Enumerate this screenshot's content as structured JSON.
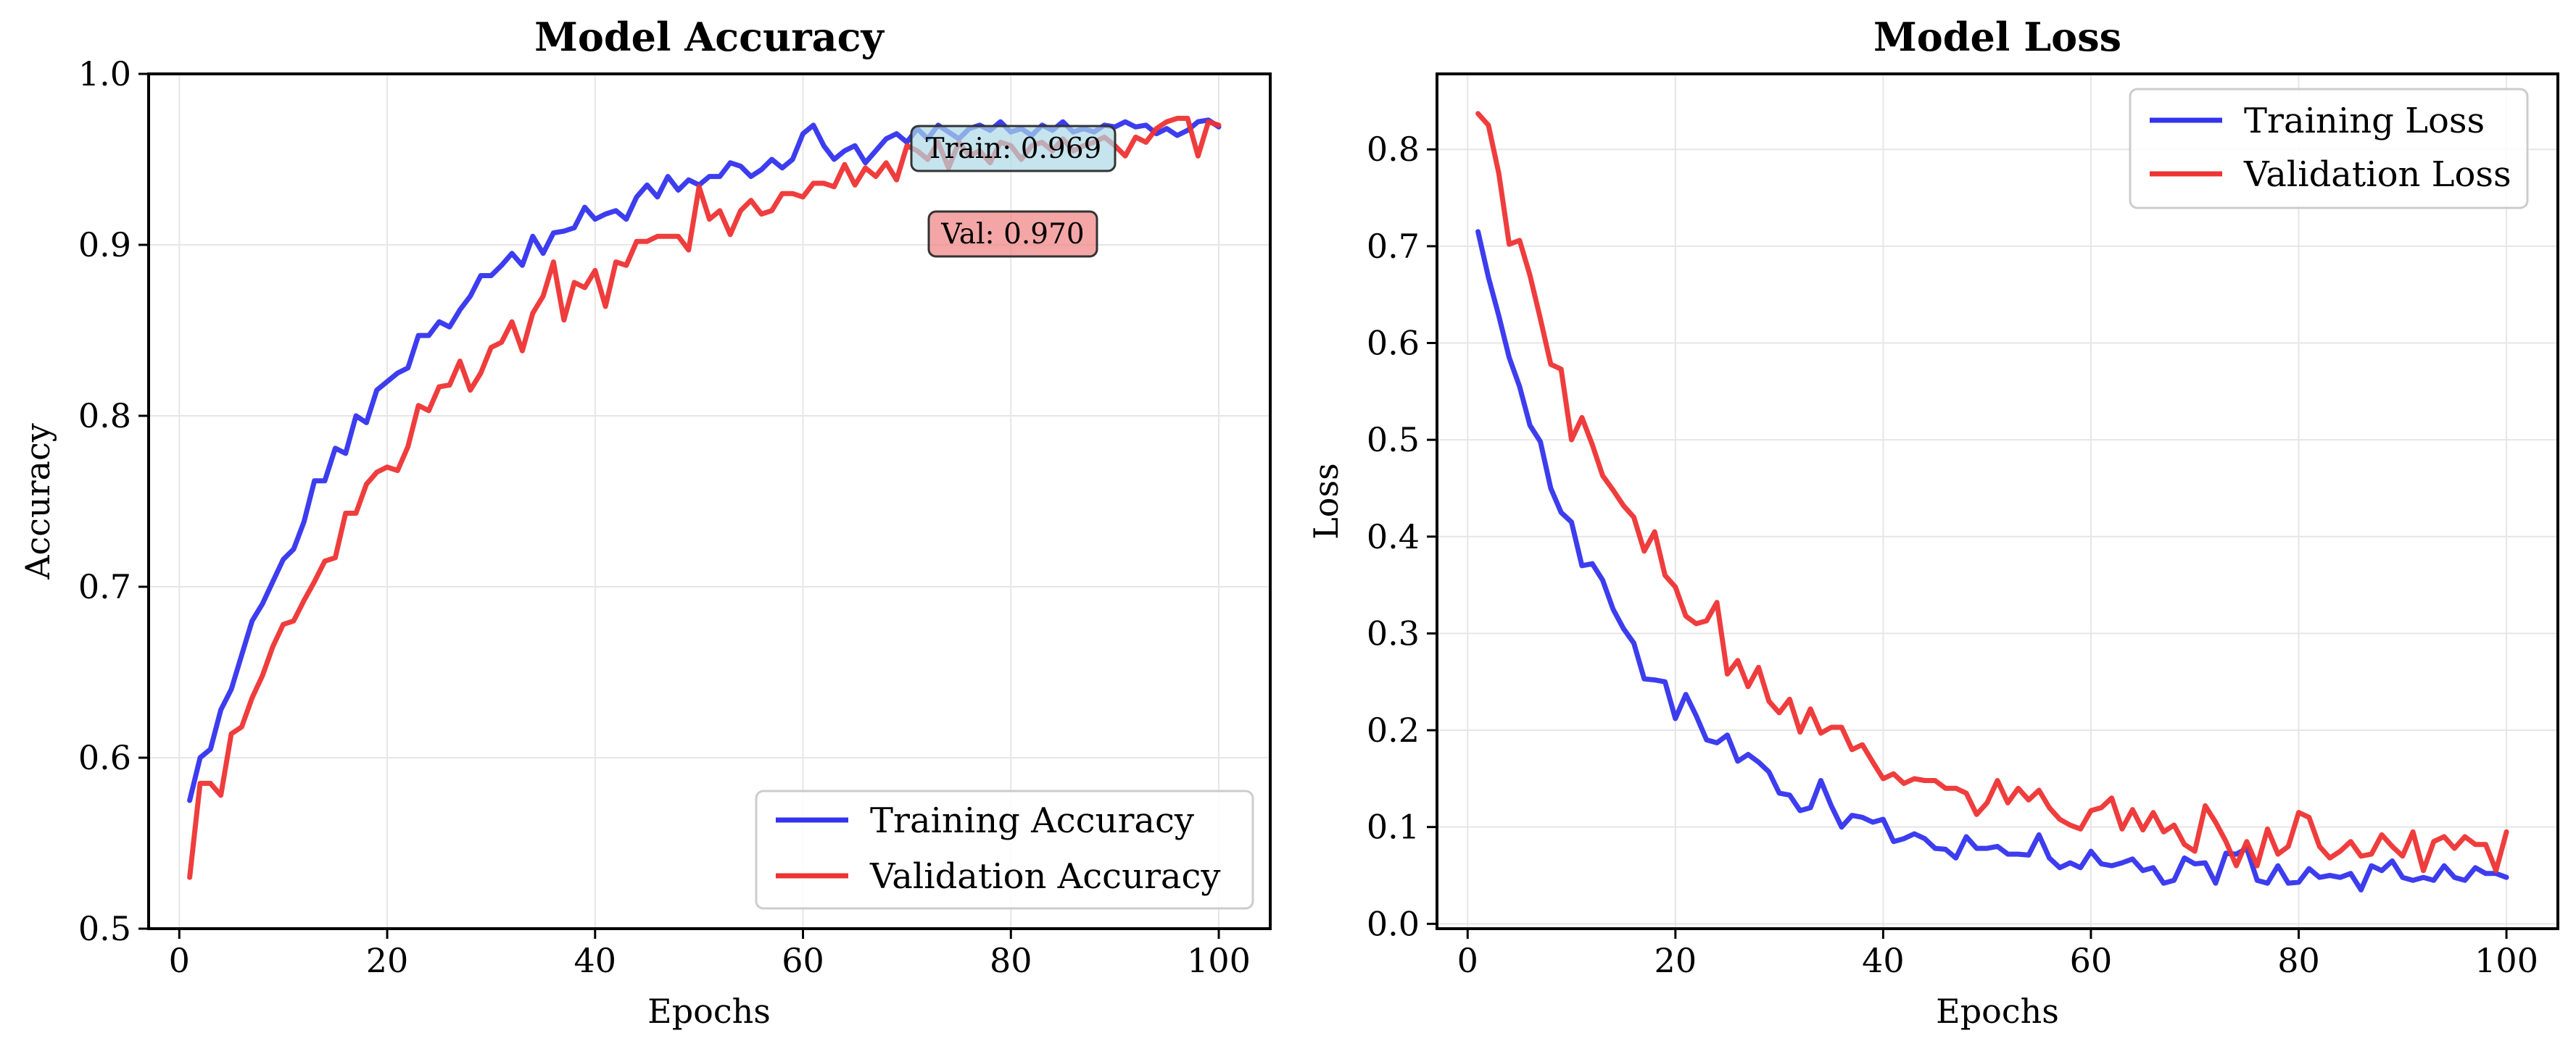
{
  "figure": {
    "background": "#ffffff"
  },
  "chart_data": [
    {
      "type": "line",
      "title": "Model Accuracy",
      "xlabel": "Epochs",
      "ylabel": "Accuracy",
      "xlim": [
        -2.95,
        104.95
      ],
      "ylim": [
        0.5,
        1.0
      ],
      "xticks": [
        0,
        20,
        40,
        60,
        80,
        100
      ],
      "yticks": [
        0.5,
        0.6,
        0.7,
        0.8,
        0.9,
        1.0
      ],
      "xtick_labels": [
        "0",
        "20",
        "40",
        "60",
        "80",
        "100"
      ],
      "ytick_labels": [
        "0.5",
        "0.6",
        "0.7",
        "0.8",
        "0.9",
        "1.0"
      ],
      "grid": true,
      "legend_position": "lower-right",
      "annotations": [
        {
          "text": "Train: 0.969",
          "color": "#add8e6"
        },
        {
          "text": "Val: 0.970",
          "color": "#f08080"
        }
      ],
      "series": [
        {
          "name": "Training Accuracy",
          "color": "#3333ee",
          "x": [
            1,
            2,
            3,
            4,
            5,
            6,
            7,
            8,
            9,
            10,
            11,
            12,
            13,
            14,
            15,
            16,
            17,
            18,
            19,
            20,
            21,
            22,
            23,
            24,
            25,
            26,
            27,
            28,
            29,
            30,
            31,
            32,
            33,
            34,
            35,
            36,
            37,
            38,
            39,
            40,
            41,
            42,
            43,
            44,
            45,
            46,
            47,
            48,
            49,
            50,
            51,
            52,
            53,
            54,
            55,
            56,
            57,
            58,
            59,
            60,
            61,
            62,
            63,
            64,
            65,
            66,
            67,
            68,
            69,
            70,
            71,
            72,
            73,
            74,
            75,
            76,
            77,
            78,
            79,
            80,
            81,
            82,
            83,
            84,
            85,
            86,
            87,
            88,
            89,
            90,
            91,
            92,
            93,
            94,
            95,
            96,
            97,
            98,
            99,
            100
          ],
          "values": [
            0.575,
            0.6,
            0.605,
            0.628,
            0.64,
            0.66,
            0.68,
            0.69,
            0.703,
            0.716,
            0.722,
            0.738,
            0.762,
            0.762,
            0.781,
            0.778,
            0.8,
            0.796,
            0.815,
            0.82,
            0.825,
            0.828,
            0.847,
            0.847,
            0.855,
            0.852,
            0.862,
            0.87,
            0.882,
            0.882,
            0.888,
            0.895,
            0.888,
            0.905,
            0.895,
            0.907,
            0.908,
            0.91,
            0.922,
            0.915,
            0.918,
            0.92,
            0.915,
            0.928,
            0.935,
            0.928,
            0.94,
            0.932,
            0.938,
            0.935,
            0.94,
            0.94,
            0.948,
            0.946,
            0.94,
            0.944,
            0.95,
            0.945,
            0.95,
            0.965,
            0.97,
            0.958,
            0.95,
            0.955,
            0.958,
            0.948,
            0.955,
            0.962,
            0.965,
            0.96,
            0.968,
            0.962,
            0.97,
            0.966,
            0.962,
            0.968,
            0.97,
            0.967,
            0.972,
            0.966,
            0.968,
            0.964,
            0.97,
            0.967,
            0.972,
            0.966,
            0.968,
            0.966,
            0.97,
            0.969,
            0.972,
            0.969,
            0.97,
            0.965,
            0.968,
            0.964,
            0.967,
            0.972,
            0.973,
            0.969
          ]
        },
        {
          "name": "Validation Accuracy",
          "color": "#ee3333",
          "x": [
            1,
            2,
            3,
            4,
            5,
            6,
            7,
            8,
            9,
            10,
            11,
            12,
            13,
            14,
            15,
            16,
            17,
            18,
            19,
            20,
            21,
            22,
            23,
            24,
            25,
            26,
            27,
            28,
            29,
            30,
            31,
            32,
            33,
            34,
            35,
            36,
            37,
            38,
            39,
            40,
            41,
            42,
            43,
            44,
            45,
            46,
            47,
            48,
            49,
            50,
            51,
            52,
            53,
            54,
            55,
            56,
            57,
            58,
            59,
            60,
            61,
            62,
            63,
            64,
            65,
            66,
            67,
            68,
            69,
            70,
            71,
            72,
            73,
            74,
            75,
            76,
            77,
            78,
            79,
            80,
            81,
            82,
            83,
            84,
            85,
            86,
            87,
            88,
            89,
            90,
            91,
            92,
            93,
            94,
            95,
            96,
            97,
            98,
            99,
            100
          ],
          "values": [
            0.53,
            0.585,
            0.585,
            0.578,
            0.614,
            0.618,
            0.635,
            0.648,
            0.665,
            0.678,
            0.68,
            0.692,
            0.703,
            0.715,
            0.717,
            0.743,
            0.743,
            0.76,
            0.767,
            0.77,
            0.768,
            0.782,
            0.806,
            0.803,
            0.817,
            0.818,
            0.832,
            0.815,
            0.825,
            0.84,
            0.843,
            0.855,
            0.838,
            0.86,
            0.87,
            0.89,
            0.856,
            0.878,
            0.875,
            0.885,
            0.864,
            0.89,
            0.888,
            0.902,
            0.902,
            0.905,
            0.905,
            0.905,
            0.897,
            0.934,
            0.915,
            0.92,
            0.906,
            0.92,
            0.926,
            0.918,
            0.92,
            0.93,
            0.93,
            0.928,
            0.936,
            0.936,
            0.934,
            0.947,
            0.935,
            0.945,
            0.94,
            0.948,
            0.938,
            0.958,
            0.955,
            0.95,
            0.96,
            0.945,
            0.96,
            0.952,
            0.955,
            0.948,
            0.96,
            0.958,
            0.95,
            0.958,
            0.96,
            0.955,
            0.962,
            0.955,
            0.958,
            0.96,
            0.963,
            0.958,
            0.952,
            0.963,
            0.96,
            0.968,
            0.972,
            0.974,
            0.974,
            0.952,
            0.972,
            0.97
          ]
        }
      ]
    },
    {
      "type": "line",
      "title": "Model Loss",
      "xlabel": "Epochs",
      "ylabel": "Loss",
      "xlim": [
        -2.95,
        104.95
      ],
      "ylim": [
        -0.005,
        0.878
      ],
      "xticks": [
        0,
        20,
        40,
        60,
        80,
        100
      ],
      "yticks": [
        0.0,
        0.1,
        0.2,
        0.3,
        0.4,
        0.5,
        0.6,
        0.7,
        0.8
      ],
      "xtick_labels": [
        "0",
        "20",
        "40",
        "60",
        "80",
        "100"
      ],
      "ytick_labels": [
        "0.0",
        "0.1",
        "0.2",
        "0.3",
        "0.4",
        "0.5",
        "0.6",
        "0.7",
        "0.8"
      ],
      "grid": true,
      "legend_position": "upper-right",
      "series": [
        {
          "name": "Training Loss",
          "color": "#3333ee",
          "x": [
            1,
            2,
            3,
            4,
            5,
            6,
            7,
            8,
            9,
            10,
            11,
            12,
            13,
            14,
            15,
            16,
            17,
            18,
            19,
            20,
            21,
            22,
            23,
            24,
            25,
            26,
            27,
            28,
            29,
            30,
            31,
            32,
            33,
            34,
            35,
            36,
            37,
            38,
            39,
            40,
            41,
            42,
            43,
            44,
            45,
            46,
            47,
            48,
            49,
            50,
            51,
            52,
            53,
            54,
            55,
            56,
            57,
            58,
            59,
            60,
            61,
            62,
            63,
            64,
            65,
            66,
            67,
            68,
            69,
            70,
            71,
            72,
            73,
            74,
            75,
            76,
            77,
            78,
            79,
            80,
            81,
            82,
            83,
            84,
            85,
            86,
            87,
            88,
            89,
            90,
            91,
            92,
            93,
            94,
            95,
            96,
            97,
            98,
            99,
            100
          ],
          "values": [
            0.715,
            0.668,
            0.628,
            0.585,
            0.555,
            0.515,
            0.498,
            0.45,
            0.425,
            0.415,
            0.37,
            0.372,
            0.355,
            0.325,
            0.305,
            0.29,
            0.253,
            0.252,
            0.25,
            0.212,
            0.237,
            0.215,
            0.19,
            0.187,
            0.195,
            0.168,
            0.175,
            0.167,
            0.157,
            0.135,
            0.133,
            0.117,
            0.12,
            0.148,
            0.122,
            0.1,
            0.112,
            0.11,
            0.105,
            0.108,
            0.085,
            0.088,
            0.093,
            0.088,
            0.078,
            0.077,
            0.068,
            0.09,
            0.078,
            0.078,
            0.08,
            0.072,
            0.072,
            0.071,
            0.092,
            0.068,
            0.058,
            0.063,
            0.058,
            0.075,
            0.062,
            0.06,
            0.063,
            0.067,
            0.055,
            0.058,
            0.042,
            0.045,
            0.068,
            0.062,
            0.063,
            0.042,
            0.073,
            0.072,
            0.078,
            0.045,
            0.042,
            0.06,
            0.042,
            0.043,
            0.057,
            0.048,
            0.05,
            0.048,
            0.052,
            0.035,
            0.06,
            0.055,
            0.065,
            0.048,
            0.045,
            0.048,
            0.045,
            0.06,
            0.048,
            0.045,
            0.058,
            0.052,
            0.052,
            0.048
          ]
        },
        {
          "name": "Validation Loss",
          "color": "#ee3333",
          "x": [
            1,
            2,
            3,
            4,
            5,
            6,
            7,
            8,
            9,
            10,
            11,
            12,
            13,
            14,
            15,
            16,
            17,
            18,
            19,
            20,
            21,
            22,
            23,
            24,
            25,
            26,
            27,
            28,
            29,
            30,
            31,
            32,
            33,
            34,
            35,
            36,
            37,
            38,
            39,
            40,
            41,
            42,
            43,
            44,
            45,
            46,
            47,
            48,
            49,
            50,
            51,
            52,
            53,
            54,
            55,
            56,
            57,
            58,
            59,
            60,
            61,
            62,
            63,
            64,
            65,
            66,
            67,
            68,
            69,
            70,
            71,
            72,
            73,
            74,
            75,
            76,
            77,
            78,
            79,
            80,
            81,
            82,
            83,
            84,
            85,
            86,
            87,
            88,
            89,
            90,
            91,
            92,
            93,
            94,
            95,
            96,
            97,
            98,
            99,
            100
          ],
          "values": [
            0.837,
            0.825,
            0.775,
            0.702,
            0.706,
            0.67,
            0.625,
            0.578,
            0.573,
            0.5,
            0.523,
            0.495,
            0.463,
            0.448,
            0.432,
            0.42,
            0.385,
            0.405,
            0.36,
            0.348,
            0.318,
            0.31,
            0.313,
            0.332,
            0.258,
            0.272,
            0.245,
            0.265,
            0.23,
            0.218,
            0.232,
            0.198,
            0.222,
            0.197,
            0.203,
            0.203,
            0.18,
            0.185,
            0.167,
            0.15,
            0.155,
            0.145,
            0.15,
            0.148,
            0.148,
            0.14,
            0.14,
            0.135,
            0.113,
            0.125,
            0.148,
            0.125,
            0.14,
            0.128,
            0.138,
            0.12,
            0.108,
            0.102,
            0.098,
            0.117,
            0.12,
            0.13,
            0.098,
            0.118,
            0.097,
            0.115,
            0.095,
            0.102,
            0.082,
            0.075,
            0.122,
            0.105,
            0.085,
            0.06,
            0.085,
            0.06,
            0.098,
            0.072,
            0.08,
            0.115,
            0.11,
            0.08,
            0.068,
            0.075,
            0.085,
            0.07,
            0.072,
            0.092,
            0.08,
            0.07,
            0.095,
            0.055,
            0.085,
            0.09,
            0.078,
            0.09,
            0.082,
            0.082,
            0.055,
            0.095
          ]
        }
      ]
    }
  ]
}
